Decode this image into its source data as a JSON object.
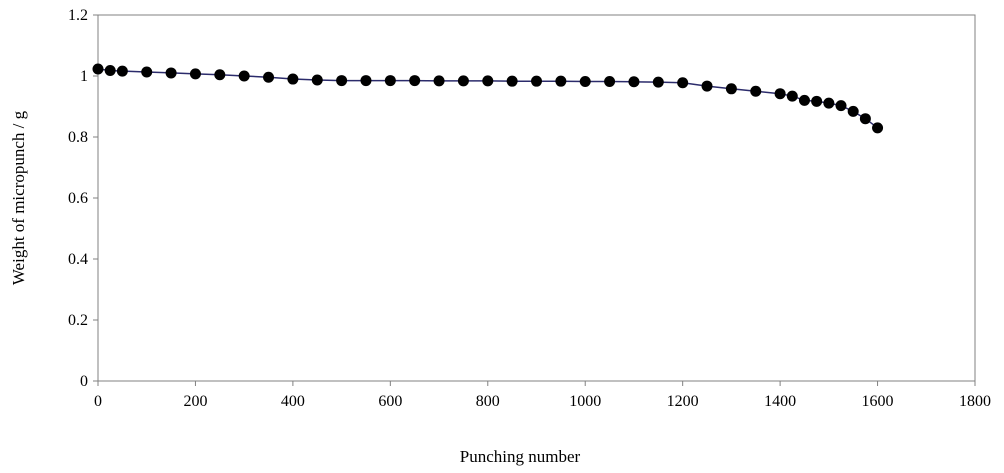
{
  "chart_data": {
    "type": "line",
    "title": "",
    "xlabel": "Punching number",
    "ylabel": "Weight of micropunch  / g",
    "xlim": [
      0,
      1800
    ],
    "ylim": [
      0,
      1.2
    ],
    "x_ticks": [
      0,
      200,
      400,
      600,
      800,
      1000,
      1200,
      1400,
      1600,
      1800
    ],
    "y_ticks": [
      0,
      0.2,
      0.4,
      0.6,
      0.8,
      1,
      1.2
    ],
    "x_tick_labels": [
      "0",
      "200",
      "400",
      "600",
      "800",
      "1000",
      "1200",
      "1400",
      "1600",
      "1800"
    ],
    "y_tick_labels": [
      "0",
      "0.2",
      "0.4",
      "0.6",
      "0.8",
      "1",
      "1.2"
    ],
    "grid": false,
    "legend": "none",
    "series": [
      {
        "line_color": "#2b2b6b",
        "marker_color": "#000000",
        "marker": "filled-circle",
        "x": [
          0,
          25,
          50,
          100,
          150,
          200,
          250,
          300,
          350,
          400,
          450,
          500,
          550,
          600,
          650,
          700,
          750,
          800,
          850,
          900,
          950,
          1000,
          1050,
          1100,
          1150,
          1200,
          1250,
          1300,
          1350,
          1400,
          1425,
          1450,
          1475,
          1500,
          1525,
          1550,
          1575,
          1600
        ],
        "y": [
          1.023,
          1.018,
          1.016,
          1.013,
          1.01,
          1.007,
          1.004,
          1.0,
          0.996,
          0.99,
          0.987,
          0.985,
          0.985,
          0.985,
          0.985,
          0.984,
          0.984,
          0.984,
          0.983,
          0.983,
          0.983,
          0.982,
          0.982,
          0.981,
          0.98,
          0.978,
          0.967,
          0.958,
          0.95,
          0.942,
          0.934,
          0.92,
          0.917,
          0.911,
          0.903,
          0.884,
          0.86,
          0.83
        ]
      }
    ]
  }
}
